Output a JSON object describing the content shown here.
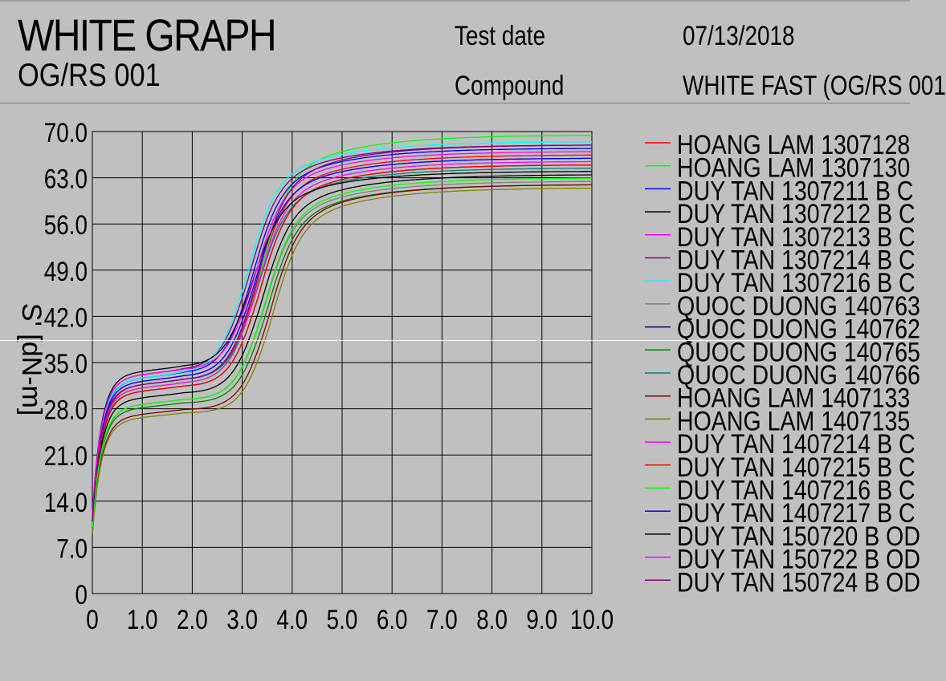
{
  "header": {
    "title": "WHITE GRAPH",
    "subtitle": "OG/RS 001",
    "test_date_label": "Test date",
    "test_date_value": "07/13/2018",
    "compound_label": "Compound",
    "compound_value": "WHITE FAST (OG/RS 001"
  },
  "chart_data": {
    "type": "line",
    "title": "WHITE GRAPH",
    "subtitle": "OG/RS 001",
    "ylabel": "S' [dN-m]",
    "xlabel": "",
    "xlim": [
      0,
      10
    ],
    "ylim": [
      0,
      70
    ],
    "x_ticks": [
      "0",
      "1.0",
      "2.0",
      "3.0",
      "4.0",
      "5.0",
      "6.0",
      "7.0",
      "8.0",
      "9.0",
      "10.0"
    ],
    "y_ticks": [
      "0",
      "7.0",
      "14.0",
      "21.0",
      "28.0",
      "35.0",
      "42.0",
      "49.0",
      "56.0",
      "63.0",
      "70.0"
    ],
    "grid": true,
    "legend_position": "right",
    "series": [
      {
        "name": "HOANG LAM 1307128",
        "color": "#ff0000",
        "initial": 9,
        "plateau": 31.0,
        "t_mid": 3.25,
        "final": 66.5
      },
      {
        "name": "HOANG LAM 1307130",
        "color": "#00ff00",
        "initial": 10,
        "plateau": 30.5,
        "t_mid": 3.3,
        "final": 69.5
      },
      {
        "name": "DUY TAN 1307211 B C",
        "color": "#0000ff",
        "initial": 11,
        "plateau": 32.0,
        "t_mid": 3.15,
        "final": 67.5
      },
      {
        "name": "DUY TAN 1307212 B C",
        "color": "#000000",
        "initial": 10,
        "plateau": 29.0,
        "t_mid": 3.35,
        "final": 63.5
      },
      {
        "name": "DUY TAN 1307213 B C",
        "color": "#ff00ff",
        "initial": 11,
        "plateau": 31.5,
        "t_mid": 3.2,
        "final": 66.0
      },
      {
        "name": "DUY TAN 1307214 B C",
        "color": "#800080",
        "initial": 12,
        "plateau": 32.5,
        "t_mid": 3.1,
        "final": 68.0
      },
      {
        "name": "DUY TAN 1307216 B C",
        "color": "#00ffff",
        "initial": 12,
        "plateau": 32.0,
        "t_mid": 3.05,
        "final": 68.5
      },
      {
        "name": "QUOC DUONG 140763",
        "color": "#808080",
        "initial": 9,
        "plateau": 28.0,
        "t_mid": 3.4,
        "final": 62.5
      },
      {
        "name": "QUOC DUONG 140762",
        "color": "#000080",
        "initial": 10,
        "plateau": 30.0,
        "t_mid": 3.3,
        "final": 65.0
      },
      {
        "name": "QUOC DUONG 140765",
        "color": "#008000",
        "initial": 10,
        "plateau": 27.5,
        "t_mid": 3.45,
        "final": 62.0
      },
      {
        "name": "QUOC DUONG 140766",
        "color": "#008080",
        "initial": 11,
        "plateau": 31.0,
        "t_mid": 3.25,
        "final": 64.5
      },
      {
        "name": "HOANG LAM 1407133",
        "color": "#800000",
        "initial": 9,
        "plateau": 26.5,
        "t_mid": 3.5,
        "final": 62.0
      },
      {
        "name": "HOANG LAM 1407135",
        "color": "#808000",
        "initial": 9,
        "plateau": 26.0,
        "t_mid": 3.55,
        "final": 61.5
      },
      {
        "name": "DUY TAN 1407214 B C",
        "color": "#ff00ff",
        "initial": 11,
        "plateau": 30.5,
        "t_mid": 3.25,
        "final": 65.5
      },
      {
        "name": "DUY TAN 1407215 B C",
        "color": "#ff0000",
        "initial": 11,
        "plateau": 30.0,
        "t_mid": 3.3,
        "final": 65.0
      },
      {
        "name": "DUY TAN 1407216 B C",
        "color": "#00ff00",
        "initial": 10,
        "plateau": 28.0,
        "t_mid": 3.4,
        "final": 63.0
      },
      {
        "name": "DUY TAN 1407217 B C",
        "color": "#0000ff",
        "initial": 11,
        "plateau": 31.5,
        "t_mid": 3.2,
        "final": 66.0
      },
      {
        "name": "DUY TAN 150720 B OD",
        "color": "#000000",
        "initial": 12,
        "plateau": 33.0,
        "t_mid": 3.15,
        "final": 64.0
      },
      {
        "name": "DUY TAN 150722 B OD",
        "color": "#ff00ff",
        "initial": 12,
        "plateau": 32.5,
        "t_mid": 3.2,
        "final": 67.0
      },
      {
        "name": "DUY TAN 150724 B OD",
        "color": "#800080",
        "initial": 11,
        "plateau": 31.0,
        "t_mid": 3.25,
        "final": 68.0
      }
    ]
  }
}
